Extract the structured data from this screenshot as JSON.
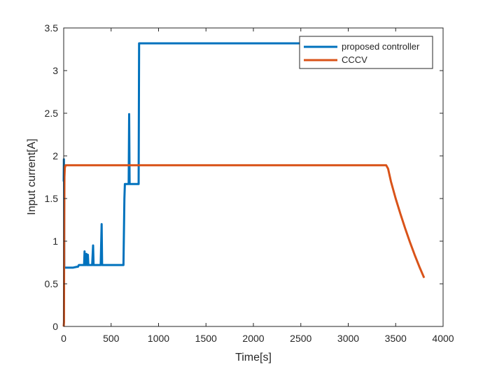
{
  "chart_data": {
    "type": "line",
    "title": "",
    "xlabel": "Time[s]",
    "ylabel": "Input current[A]",
    "xlim": [
      0,
      4000
    ],
    "ylim": [
      0,
      3.5
    ],
    "xticks": [
      0,
      500,
      1000,
      1500,
      2000,
      2500,
      3000,
      3500,
      4000
    ],
    "xtick_labels": [
      "0",
      "500",
      "1000",
      "1500",
      "2000",
      "2500",
      "3000",
      "3500",
      "4000"
    ],
    "yticks": [
      0,
      0.5,
      1,
      1.5,
      2,
      2.5,
      3,
      3.5
    ],
    "ytick_labels": [
      "0",
      "0.5",
      "1",
      "1.5",
      "2",
      "2.5",
      "3",
      "3.5"
    ],
    "grid": false,
    "legend_position": "top-right",
    "series": [
      {
        "name": "proposed controller",
        "color": "#0072BD",
        "x": [
          0,
          2,
          4,
          6,
          10,
          20,
          60,
          100,
          140,
          150,
          160,
          165,
          170,
          180,
          185,
          200,
          210,
          215,
          220,
          225,
          230,
          240,
          245,
          250,
          255,
          260,
          265,
          270,
          280,
          300,
          310,
          315,
          320,
          325,
          330,
          350,
          390,
          400,
          405,
          410,
          415,
          420,
          500,
          580,
          630,
          640,
          645,
          650,
          660,
          680,
          685,
          690,
          695,
          700,
          780,
          790,
          795,
          800,
          1000,
          2000,
          2500,
          2800
        ],
        "y": [
          1.7,
          1.96,
          1.7,
          0.69,
          0.69,
          0.69,
          0.69,
          0.69,
          0.7,
          0.7,
          0.72,
          0.72,
          0.72,
          0.72,
          0.72,
          0.72,
          0.72,
          0.72,
          0.88,
          0.74,
          0.72,
          0.85,
          0.72,
          0.72,
          0.84,
          0.72,
          0.72,
          0.72,
          0.72,
          0.72,
          0.95,
          0.72,
          0.72,
          0.72,
          0.72,
          0.72,
          0.72,
          1.2,
          0.72,
          0.72,
          0.72,
          0.72,
          0.72,
          0.72,
          0.72,
          1.5,
          1.67,
          1.67,
          1.67,
          1.67,
          1.67,
          2.49,
          1.67,
          1.67,
          1.67,
          1.67,
          3.32,
          3.32,
          3.32,
          3.32,
          3.32,
          3.32
        ]
      },
      {
        "name": "CCCV",
        "color": "#D95319",
        "x": [
          0,
          3,
          5,
          8,
          12,
          20,
          30,
          500,
          1000,
          2000,
          3000,
          3400,
          3420,
          3450,
          3500,
          3550,
          3600,
          3650,
          3700,
          3750,
          3800
        ],
        "y": [
          0,
          0.05,
          1.0,
          1.75,
          1.86,
          1.89,
          1.89,
          1.89,
          1.89,
          1.89,
          1.89,
          1.89,
          1.85,
          1.7,
          1.5,
          1.32,
          1.15,
          0.99,
          0.84,
          0.7,
          0.57
        ]
      }
    ]
  }
}
